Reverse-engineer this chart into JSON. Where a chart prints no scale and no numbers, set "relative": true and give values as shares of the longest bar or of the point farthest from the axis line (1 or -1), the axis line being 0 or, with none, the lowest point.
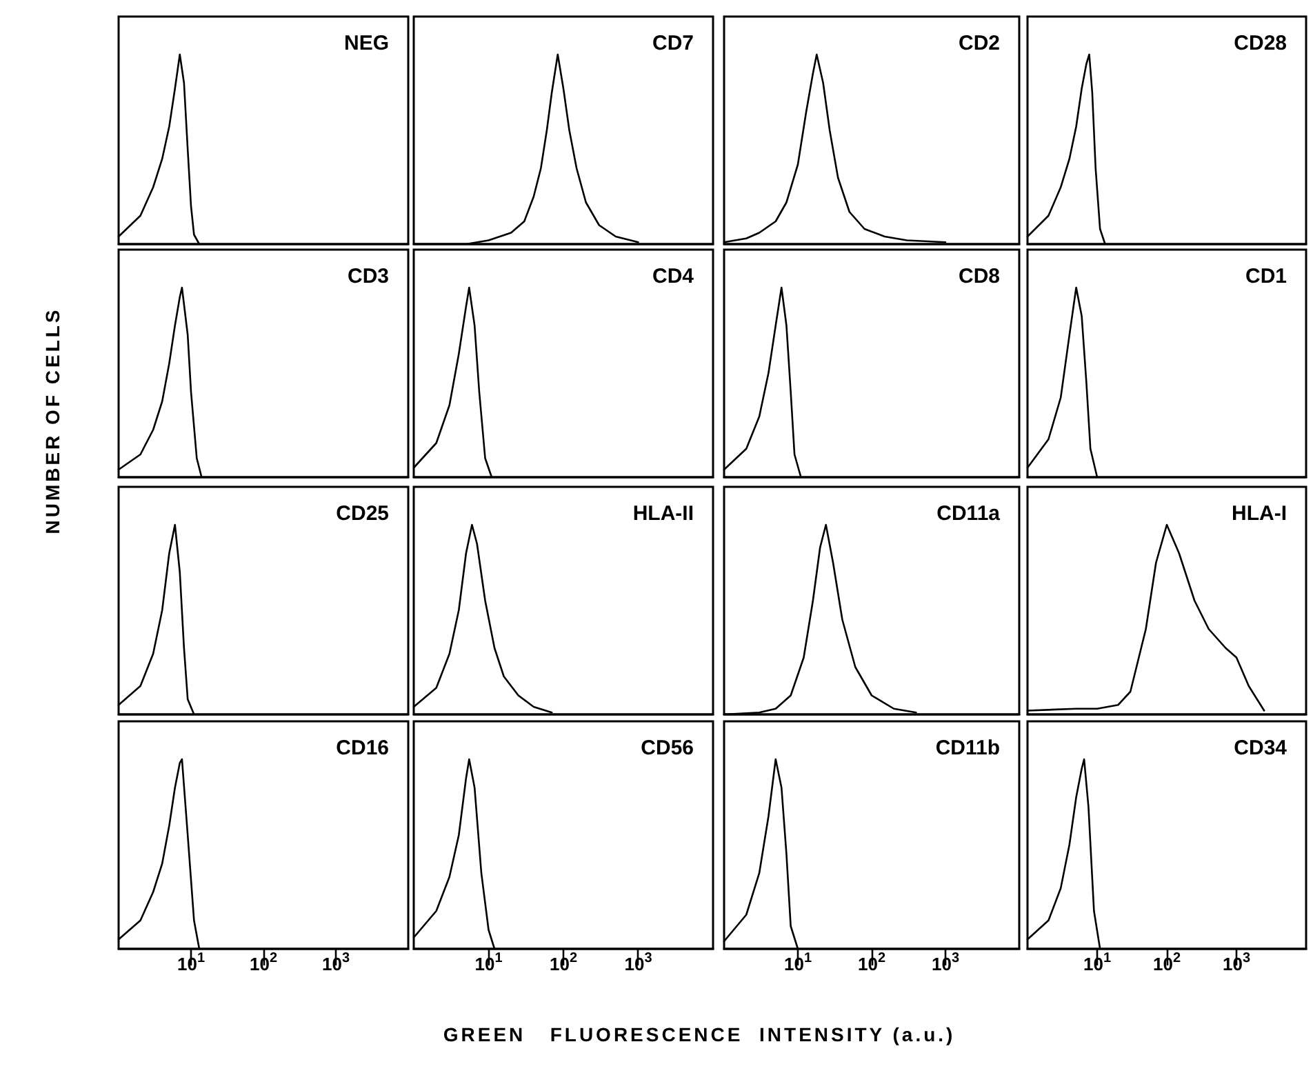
{
  "chart_data": [
    {
      "type": "line",
      "title": "NEG",
      "relative": true,
      "log": "x",
      "xlim": [
        1,
        10000
      ],
      "tick_labels": false,
      "x": [
        1,
        2,
        3,
        4,
        5,
        6,
        7,
        8,
        9,
        10,
        11,
        13
      ],
      "series": [
        {
          "color": "#000000",
          "values": [
            0.04,
            0.15,
            0.3,
            0.45,
            0.62,
            0.82,
            1,
            0.85,
            0.5,
            0.2,
            0.05,
            0
          ]
        }
      ]
    },
    {
      "type": "line",
      "title": "CD7",
      "relative": true,
      "log": "x",
      "xlim": [
        1,
        10000
      ],
      "tick_labels": false,
      "x": [
        1,
        5,
        10,
        20,
        30,
        40,
        50,
        60,
        70,
        84,
        100,
        120,
        150,
        200,
        300,
        500,
        1000
      ],
      "series": [
        {
          "color": "#000000",
          "values": [
            0,
            0,
            0.02,
            0.06,
            0.12,
            0.25,
            0.4,
            0.6,
            0.8,
            1,
            0.82,
            0.6,
            0.4,
            0.22,
            0.1,
            0.04,
            0.01
          ]
        }
      ]
    },
    {
      "type": "line",
      "title": "CD2",
      "relative": true,
      "log": "x",
      "xlim": [
        1,
        10000
      ],
      "tick_labels": false,
      "x": [
        1,
        2,
        3,
        5,
        7,
        10,
        13,
        16,
        18,
        22,
        27,
        35,
        50,
        80,
        150,
        300,
        1000
      ],
      "series": [
        {
          "color": "#000000",
          "values": [
            0.01,
            0.03,
            0.06,
            0.12,
            0.22,
            0.42,
            0.7,
            0.9,
            1,
            0.85,
            0.6,
            0.35,
            0.17,
            0.08,
            0.04,
            0.02,
            0.01
          ]
        }
      ]
    },
    {
      "type": "line",
      "title": "CD28",
      "relative": true,
      "log": "x",
      "xlim": [
        1,
        10000
      ],
      "tick_labels": false,
      "x": [
        1,
        2,
        3,
        4,
        5,
        6,
        7,
        7.7,
        8.5,
        9.5,
        11,
        13
      ],
      "series": [
        {
          "color": "#000000",
          "values": [
            0.04,
            0.15,
            0.3,
            0.45,
            0.62,
            0.82,
            0.95,
            1,
            0.8,
            0.4,
            0.08,
            0
          ]
        }
      ]
    },
    {
      "type": "line",
      "title": "CD3",
      "ylabel": "NUMBER OF CELLS",
      "relative": true,
      "log": "x",
      "xlim": [
        1,
        10000
      ],
      "tick_labels": false,
      "x": [
        1,
        2,
        3,
        4,
        5,
        6,
        7,
        7.5,
        9,
        10,
        12,
        14
      ],
      "series": [
        {
          "color": "#000000",
          "values": [
            0.04,
            0.12,
            0.25,
            0.4,
            0.6,
            0.8,
            0.95,
            1,
            0.75,
            0.45,
            0.1,
            0
          ]
        }
      ]
    },
    {
      "type": "line",
      "title": "CD4",
      "relative": true,
      "log": "x",
      "xlim": [
        1,
        10000
      ],
      "tick_labels": false,
      "x": [
        1,
        2,
        3,
        4,
        5,
        5.5,
        6.5,
        7.5,
        9,
        11
      ],
      "series": [
        {
          "color": "#000000",
          "values": [
            0.05,
            0.18,
            0.38,
            0.65,
            0.9,
            1,
            0.8,
            0.45,
            0.1,
            0
          ]
        }
      ]
    },
    {
      "type": "line",
      "title": "CD8",
      "relative": true,
      "log": "x",
      "xlim": [
        1,
        10000
      ],
      "tick_labels": false,
      "x": [
        1,
        2,
        3,
        4,
        5,
        6,
        7,
        8,
        9,
        11
      ],
      "series": [
        {
          "color": "#000000",
          "values": [
            0.04,
            0.15,
            0.32,
            0.55,
            0.8,
            1,
            0.8,
            0.45,
            0.12,
            0
          ]
        }
      ]
    },
    {
      "type": "line",
      "title": "CD1",
      "relative": true,
      "log": "x",
      "xlim": [
        1,
        10000
      ],
      "tick_labels": false,
      "x": [
        1,
        2,
        3,
        4,
        5,
        6,
        7,
        8,
        10
      ],
      "series": [
        {
          "color": "#000000",
          "values": [
            0.05,
            0.2,
            0.42,
            0.75,
            1,
            0.85,
            0.5,
            0.15,
            0
          ]
        }
      ]
    },
    {
      "type": "line",
      "title": "CD25",
      "relative": true,
      "log": "x",
      "xlim": [
        1,
        10000
      ],
      "tick_labels": false,
      "x": [
        1,
        2,
        3,
        4,
        5,
        6,
        7,
        8,
        9,
        11
      ],
      "series": [
        {
          "color": "#000000",
          "values": [
            0.05,
            0.15,
            0.32,
            0.55,
            0.85,
            1,
            0.75,
            0.35,
            0.08,
            0
          ]
        }
      ]
    },
    {
      "type": "line",
      "title": "HLA-II",
      "relative": true,
      "log": "x",
      "xlim": [
        1,
        10000
      ],
      "tick_labels": false,
      "x": [
        1,
        2,
        3,
        4,
        5,
        6,
        7,
        9,
        12,
        16,
        25,
        40,
        70
      ],
      "series": [
        {
          "color": "#000000",
          "values": [
            0.04,
            0.14,
            0.32,
            0.55,
            0.85,
            1,
            0.9,
            0.6,
            0.35,
            0.2,
            0.1,
            0.04,
            0.01
          ]
        }
      ]
    },
    {
      "type": "line",
      "title": "CD11a",
      "relative": true,
      "log": "x",
      "xlim": [
        1,
        10000
      ],
      "tick_labels": false,
      "x": [
        1,
        3,
        5,
        8,
        12,
        16,
        20,
        24,
        30,
        40,
        60,
        100,
        200,
        400
      ],
      "series": [
        {
          "color": "#000000",
          "values": [
            0,
            0.01,
            0.03,
            0.1,
            0.3,
            0.6,
            0.88,
            1,
            0.8,
            0.5,
            0.25,
            0.1,
            0.03,
            0.01
          ]
        }
      ]
    },
    {
      "type": "line",
      "title": "HLA-I",
      "relative": true,
      "log": "x",
      "xlim": [
        1,
        10000
      ],
      "tick_labels": false,
      "x": [
        1,
        5,
        10,
        20,
        30,
        50,
        70,
        100,
        150,
        250,
        400,
        700,
        1000,
        1500,
        2500
      ],
      "series": [
        {
          "color": "#000000",
          "values": [
            0.02,
            0.03,
            0.03,
            0.05,
            0.12,
            0.45,
            0.8,
            1,
            0.85,
            0.6,
            0.45,
            0.35,
            0.3,
            0.15,
            0.02
          ]
        }
      ]
    },
    {
      "type": "line",
      "title": "CD16",
      "relative": true,
      "log": "x",
      "xlim": [
        1,
        10000
      ],
      "xticks": [
        {
          "value": 10,
          "label": "10$^{1}$"
        },
        {
          "value": 100,
          "label": "10$^{2}$"
        },
        {
          "value": 1000,
          "label": "10$^{3}$"
        }
      ],
      "tick_labels": "x",
      "x": [
        1,
        2,
        3,
        4,
        5,
        6,
        7,
        7.5,
        9,
        11,
        13
      ],
      "series": [
        {
          "color": "#000000",
          "values": [
            0.05,
            0.15,
            0.3,
            0.45,
            0.65,
            0.85,
            0.98,
            1,
            0.6,
            0.15,
            0
          ]
        }
      ]
    },
    {
      "type": "line",
      "title": "CD56",
      "xlabel": "GREEN   FLUORESCENCE  INTENSITY (a.u.)",
      "relative": true,
      "log": "x",
      "xlim": [
        1,
        10000
      ],
      "xticks": [
        {
          "value": 10,
          "label": "10$^{1}$"
        },
        {
          "value": 100,
          "label": "10$^{2}$"
        },
        {
          "value": 1000,
          "label": "10$^{3}$"
        }
      ],
      "tick_labels": "x",
      "x": [
        1,
        2,
        3,
        4,
        5,
        5.5,
        6.5,
        8,
        10,
        12
      ],
      "series": [
        {
          "color": "#000000",
          "values": [
            0.06,
            0.2,
            0.38,
            0.6,
            0.9,
            1,
            0.85,
            0.4,
            0.1,
            0
          ]
        }
      ]
    },
    {
      "type": "line",
      "title": "CD11b",
      "relative": true,
      "log": "x",
      "xlim": [
        1,
        10000
      ],
      "xticks": [
        {
          "value": 10,
          "label": "10$^{1}$"
        },
        {
          "value": 100,
          "label": "10$^{2}$"
        },
        {
          "value": 1000,
          "label": "10$^{3}$"
        }
      ],
      "tick_labels": "x",
      "x": [
        1,
        2,
        3,
        4,
        5,
        6,
        7,
        8,
        10
      ],
      "series": [
        {
          "color": "#000000",
          "values": [
            0.04,
            0.18,
            0.4,
            0.7,
            1,
            0.85,
            0.5,
            0.12,
            0
          ]
        }
      ]
    },
    {
      "type": "line",
      "title": "CD34",
      "relative": true,
      "log": "x",
      "xlim": [
        1,
        10000
      ],
      "xticks": [
        {
          "value": 10,
          "label": "10$^{1}$"
        },
        {
          "value": 100,
          "label": "10$^{2}$"
        },
        {
          "value": 1000,
          "label": "10$^{3}$"
        }
      ],
      "tick_labels": "x",
      "x": [
        1,
        2,
        3,
        4,
        5,
        6,
        6.5,
        7.5,
        9,
        11
      ],
      "series": [
        {
          "color": "#000000",
          "values": [
            0.05,
            0.15,
            0.32,
            0.55,
            0.8,
            0.95,
            1,
            0.75,
            0.2,
            0
          ]
        }
      ]
    }
  ]
}
